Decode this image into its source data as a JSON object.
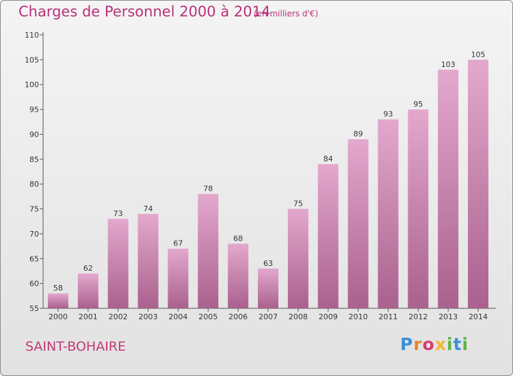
{
  "header": {
    "title": "Charges de Personnel 2000 à 2014",
    "subtitle": "(en milliers d'€)"
  },
  "footer": {
    "place": "SAINT-BOHAIRE",
    "logo_text": "Proxiti"
  },
  "colors": {
    "title": "#b8327a",
    "bar_top": "#e4a8cd",
    "bar_bottom": "#a9618d"
  },
  "chart_data": {
    "type": "bar",
    "title": "Charges de Personnel 2000 à 2014",
    "subtitle": "(en milliers d'€)",
    "xlabel": "",
    "ylabel": "",
    "categories": [
      "2000",
      "2001",
      "2002",
      "2003",
      "2004",
      "2005",
      "2006",
      "2007",
      "2008",
      "2009",
      "2010",
      "2011",
      "2012",
      "2013",
      "2014"
    ],
    "values": [
      58,
      62,
      73,
      74,
      67,
      78,
      68,
      63,
      75,
      84,
      89,
      93,
      95,
      103,
      105
    ],
    "ylim": [
      55,
      110
    ],
    "yticks": [
      55,
      60,
      65,
      70,
      75,
      80,
      85,
      90,
      95,
      100,
      105,
      110
    ],
    "grid": false,
    "data_labels": true
  }
}
